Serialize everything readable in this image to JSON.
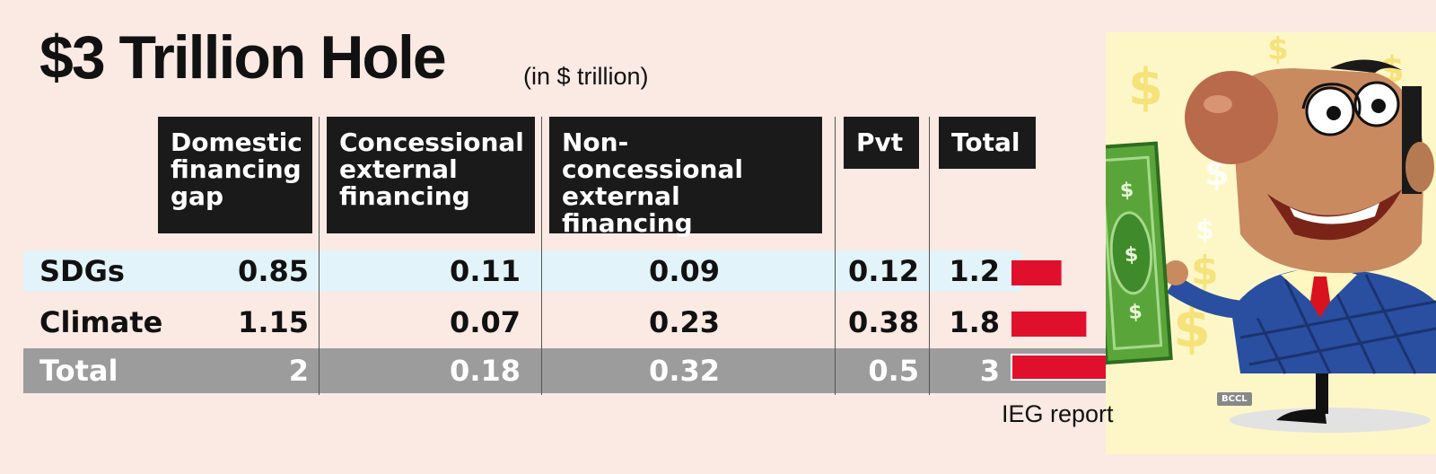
{
  "title": "$3 Trillion Hole",
  "unit_note": "(in $ trillion)",
  "source": "IEG report",
  "credit": "BCCL",
  "colors": {
    "bar": "#e0102d",
    "header_bg": "#1a1a1a",
    "sdg_band": "#e2f3fa",
    "total_band": "#9c9c9c"
  },
  "icons": [
    "cartoon-businessman-icon",
    "dollar-bill-icon",
    "dollar-sign-icon"
  ],
  "chart_data": {
    "type": "table",
    "title": "$3 Trillion Hole",
    "subtitle": "(in $ trillion)",
    "columns": [
      "Domestic\nfinancing\ngap",
      "Concessional\nexternal\nfinancing",
      "Non-concessional\nexternal\nfinancing",
      "Pvt",
      "Total"
    ],
    "rows": [
      {
        "label": "SDGs",
        "values": [
          "0.85",
          "0.11",
          "0.09",
          "0.12",
          "1.2"
        ],
        "total": 1.2
      },
      {
        "label": "Climate",
        "values": [
          "1.15",
          "0.07",
          "0.23",
          "0.38",
          "1.8"
        ],
        "total": 1.8
      },
      {
        "label": "Total",
        "values": [
          "2",
          "0.18",
          "0.32",
          "0.5",
          "3"
        ],
        "total": 3
      }
    ],
    "bar_series": {
      "name": "Total",
      "max": 3
    }
  }
}
